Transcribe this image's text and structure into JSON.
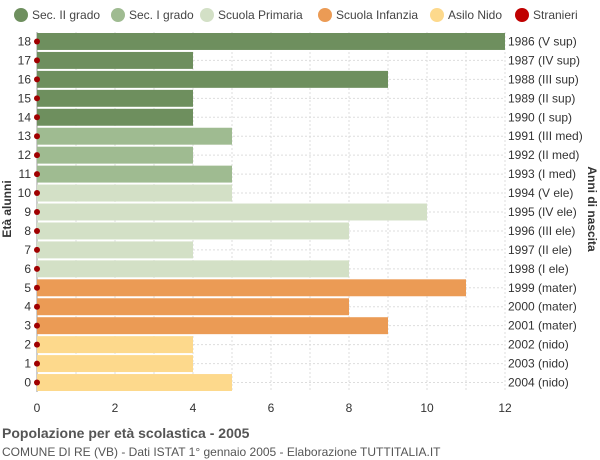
{
  "chart_data": {
    "type": "bar",
    "orientation": "horizontal",
    "ylabel_left": "Età alunni",
    "ylabel_right": "Anni di nascita",
    "xlim": [
      0,
      12
    ],
    "xticks": [
      "0",
      "2",
      "4",
      "6",
      "8",
      "10",
      "12"
    ],
    "grid": true,
    "legend_position": "top",
    "legend": [
      {
        "name": "Sec. II grado",
        "color": "#6e8f5e"
      },
      {
        "name": "Sec. I grado",
        "color": "#9fbb91"
      },
      {
        "name": "Scuola Primaria",
        "color": "#d3e0c6"
      },
      {
        "name": "Scuola Infanzia",
        "color": "#eb9b55"
      },
      {
        "name": "Asilo Nido",
        "color": "#fdd98c"
      },
      {
        "name": "Stranieri",
        "color": "#c00000"
      }
    ],
    "rows": [
      {
        "age": "18",
        "year": "1986 (V sup)",
        "value": 12,
        "group": 0,
        "stranieri": 0
      },
      {
        "age": "17",
        "year": "1987 (IV sup)",
        "value": 4,
        "group": 0,
        "stranieri": 0
      },
      {
        "age": "16",
        "year": "1988 (III sup)",
        "value": 9,
        "group": 0,
        "stranieri": 0
      },
      {
        "age": "15",
        "year": "1989 (II sup)",
        "value": 4,
        "group": 0,
        "stranieri": 0
      },
      {
        "age": "14",
        "year": "1990 (I sup)",
        "value": 4,
        "group": 0,
        "stranieri": 0
      },
      {
        "age": "13",
        "year": "1991 (III med)",
        "value": 5,
        "group": 1,
        "stranieri": 0
      },
      {
        "age": "12",
        "year": "1992 (II med)",
        "value": 4,
        "group": 1,
        "stranieri": 0
      },
      {
        "age": "11",
        "year": "1993 (I med)",
        "value": 5,
        "group": 1,
        "stranieri": 0
      },
      {
        "age": "10",
        "year": "1994 (V ele)",
        "value": 5,
        "group": 2,
        "stranieri": 0
      },
      {
        "age": "9",
        "year": "1995 (IV ele)",
        "value": 10,
        "group": 2,
        "stranieri": 0
      },
      {
        "age": "8",
        "year": "1996 (III ele)",
        "value": 8,
        "group": 2,
        "stranieri": 0
      },
      {
        "age": "7",
        "year": "1997 (II ele)",
        "value": 4,
        "group": 2,
        "stranieri": 0
      },
      {
        "age": "6",
        "year": "1998 (I ele)",
        "value": 8,
        "group": 2,
        "stranieri": 0
      },
      {
        "age": "5",
        "year": "1999 (mater)",
        "value": 11,
        "group": 3,
        "stranieri": 0
      },
      {
        "age": "4",
        "year": "2000 (mater)",
        "value": 8,
        "group": 3,
        "stranieri": 0
      },
      {
        "age": "3",
        "year": "2001 (mater)",
        "value": 9,
        "group": 3,
        "stranieri": 0
      },
      {
        "age": "2",
        "year": "2002 (nido)",
        "value": 4,
        "group": 4,
        "stranieri": 0
      },
      {
        "age": "1",
        "year": "2003 (nido)",
        "value": 4,
        "group": 4,
        "stranieri": 0
      },
      {
        "age": "0",
        "year": "2004 (nido)",
        "value": 5,
        "group": 4,
        "stranieri": 0
      }
    ]
  },
  "footer": {
    "title": "Popolazione per età scolastica - 2005",
    "subtitle": "COMUNE DI RE (VB) - Dati ISTAT 1° gennaio 2005 - Elaborazione TUTTITALIA.IT"
  }
}
